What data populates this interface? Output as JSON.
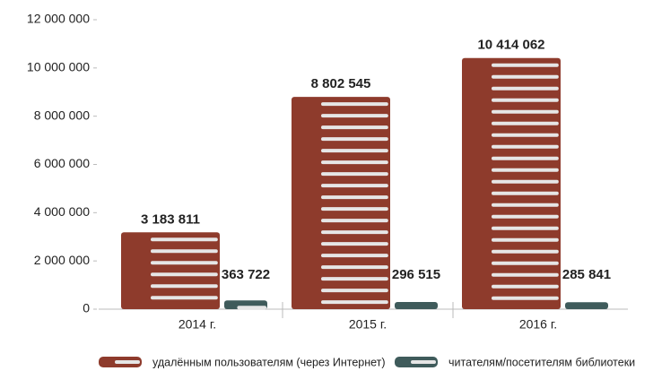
{
  "chart_data": {
    "type": "bar",
    "categories": [
      "2014 г.",
      "2015 г.",
      "2016 г."
    ],
    "series": [
      {
        "name": "удалённым пользователям (через Интернет)",
        "color": "#8e3b2c",
        "values": [
          3183811,
          8802545,
          10414062
        ],
        "value_labels": [
          "3 183 811",
          "8 802 545",
          "10 414 062"
        ]
      },
      {
        "name": "читателям/посетителям библиотеки",
        "color": "#3f5b5b",
        "values": [
          363722,
          296515,
          285841
        ],
        "value_labels": [
          "363 722",
          "296 515",
          "285 841"
        ]
      }
    ],
    "ylim": [
      0,
      12000000
    ],
    "yticks": [
      0,
      {
        "value": 2000000,
        "label": "2 000 000"
      },
      {
        "value": 4000000,
        "label": "4 000 000"
      },
      {
        "value": 6000000,
        "label": "6 000 000"
      },
      {
        "value": 8000000,
        "label": "8 000 000"
      },
      {
        "value": 10000000,
        "label": "10 000 000"
      },
      {
        "value": 12000000,
        "label": "12 000 000"
      }
    ],
    "grid": false
  }
}
